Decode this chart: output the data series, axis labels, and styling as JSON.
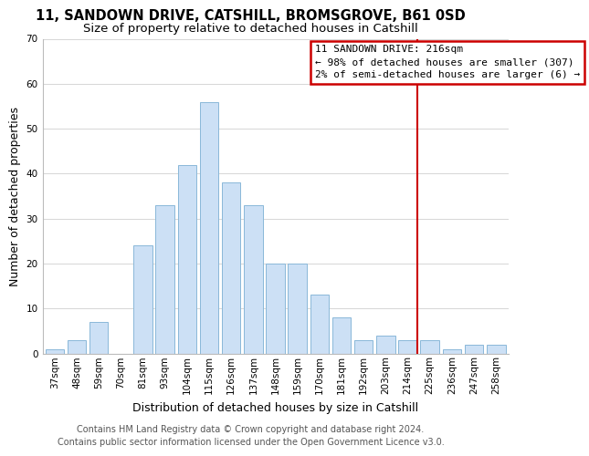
{
  "title": "11, SANDOWN DRIVE, CATSHILL, BROMSGROVE, B61 0SD",
  "subtitle": "Size of property relative to detached houses in Catshill",
  "xlabel": "Distribution of detached houses by size in Catshill",
  "ylabel": "Number of detached properties",
  "bar_color": "#cce0f5",
  "bar_edge_color": "#8ab8d8",
  "categories": [
    "37sqm",
    "48sqm",
    "59sqm",
    "70sqm",
    "81sqm",
    "93sqm",
    "104sqm",
    "115sqm",
    "126sqm",
    "137sqm",
    "148sqm",
    "159sqm",
    "170sqm",
    "181sqm",
    "192sqm",
    "203sqm",
    "214sqm",
    "225sqm",
    "236sqm",
    "247sqm",
    "258sqm"
  ],
  "values": [
    1,
    3,
    7,
    0,
    24,
    33,
    42,
    56,
    38,
    33,
    20,
    20,
    13,
    8,
    3,
    4,
    3,
    3,
    1,
    2,
    2
  ],
  "ylim": [
    0,
    70
  ],
  "yticks": [
    0,
    10,
    20,
    30,
    40,
    50,
    60,
    70
  ],
  "vline_index": 16,
  "vline_color": "#cc0000",
  "legend_title": "11 SANDOWN DRIVE: 216sqm",
  "legend_line1": "← 98% of detached houses are smaller (307)",
  "legend_line2": "2% of semi-detached houses are larger (6) →",
  "legend_box_color": "#cc0000",
  "footer1": "Contains HM Land Registry data © Crown copyright and database right 2024.",
  "footer2": "Contains public sector information licensed under the Open Government Licence v3.0.",
  "title_fontsize": 10.5,
  "subtitle_fontsize": 9.5,
  "axis_label_fontsize": 9,
  "tick_fontsize": 7.5,
  "legend_fontsize": 8,
  "footer_fontsize": 7
}
